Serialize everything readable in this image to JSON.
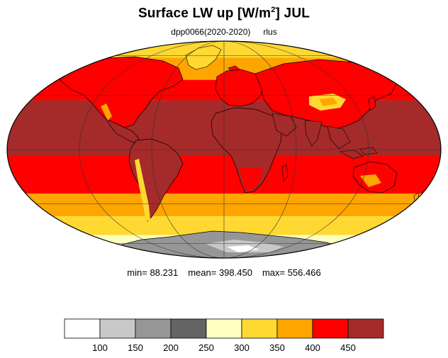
{
  "title": {
    "main": "Surface LW up [W/m",
    "superscript": "2",
    "suffix": "]  JUL"
  },
  "subtitle": {
    "experiment": "dpp0066(2020-2020)",
    "variable": "rlus"
  },
  "stats": {
    "min": "min=  88.231",
    "mean": "mean= 398.450",
    "max": "max= 556.466"
  },
  "colorbar": {
    "colors": [
      "#ffffff",
      "#c8c8c8",
      "#969696",
      "#646464",
      "#ffffc0",
      "#ffd932",
      "#ffa500",
      "#ff0000",
      "#a52a2a"
    ],
    "tick_labels": [
      "100",
      "150",
      "200",
      "250",
      "300",
      "350",
      "400",
      "450"
    ]
  },
  "map": {
    "projection": "Mollweide",
    "ocean_bands_lat_deg": [
      {
        "from": 90,
        "to": 72,
        "color": "#ffd932"
      },
      {
        "from": 72,
        "to": 58,
        "color": "#ffd932"
      },
      {
        "from": 58,
        "to": 40,
        "color": "#ffa500"
      },
      {
        "from": 40,
        "to": 27,
        "color": "#ff0000"
      },
      {
        "from": 27,
        "to": -3,
        "color": "#a52a2a"
      },
      {
        "from": -3,
        "to": -24,
        "color": "#ff0000"
      },
      {
        "from": -24,
        "to": -38,
        "color": "#ffa500"
      },
      {
        "from": -38,
        "to": -52,
        "color": "#ffd932"
      },
      {
        "from": -52,
        "to": -62,
        "color": "#ffffc0"
      },
      {
        "from": -62,
        "to": -90,
        "color": "#646464"
      }
    ]
  }
}
